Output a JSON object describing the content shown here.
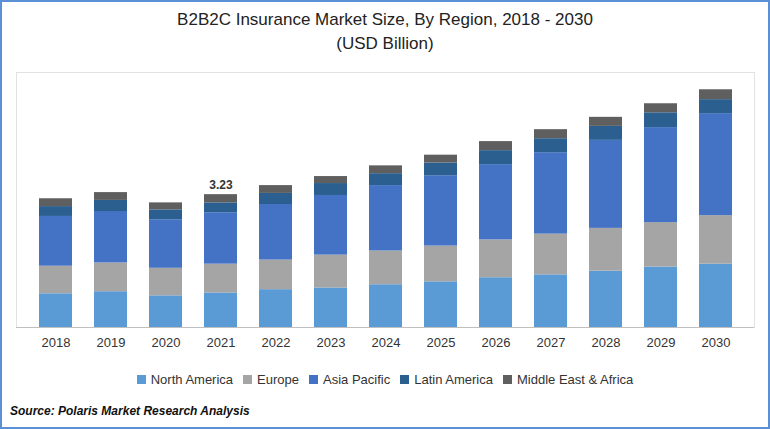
{
  "chart_data": {
    "type": "bar",
    "stacked": true,
    "title": "B2B2C Insurance Market Size, By Region, 2018 - 2030",
    "subtitle": "(USD Billion)",
    "source": "Source: Polaris Market Research Analysis",
    "categories": [
      "2018",
      "2019",
      "2020",
      "2021",
      "2022",
      "2023",
      "2024",
      "2025",
      "2026",
      "2027",
      "2028",
      "2029",
      "2030"
    ],
    "series": [
      {
        "name": "North America",
        "color": "#5b9bd5",
        "values": [
          0.82,
          0.87,
          0.77,
          0.84,
          0.92,
          0.96,
          1.04,
          1.11,
          1.21,
          1.28,
          1.37,
          1.47,
          1.54
        ]
      },
      {
        "name": "Europe",
        "color": "#a5a5a5",
        "values": [
          0.67,
          0.7,
          0.67,
          0.7,
          0.72,
          0.8,
          0.82,
          0.87,
          0.92,
          0.99,
          1.04,
          1.08,
          1.18
        ]
      },
      {
        "name": "Asia Pacific",
        "color": "#4472c4",
        "values": [
          1.21,
          1.25,
          1.18,
          1.25,
          1.35,
          1.45,
          1.59,
          1.71,
          1.83,
          1.98,
          2.14,
          2.31,
          2.48
        ]
      },
      {
        "name": "Latin America",
        "color": "#2a5f8f",
        "values": [
          0.24,
          0.27,
          0.24,
          0.24,
          0.27,
          0.29,
          0.29,
          0.31,
          0.34,
          0.34,
          0.34,
          0.36,
          0.34
        ]
      },
      {
        "name": "Middle East & Africa",
        "color": "#5f5f5f",
        "values": [
          0.19,
          0.19,
          0.17,
          0.2,
          0.19,
          0.17,
          0.19,
          0.19,
          0.22,
          0.22,
          0.22,
          0.22,
          0.24
        ]
      }
    ],
    "annotations": [
      {
        "text": "3.23",
        "x": "2021",
        "y": 3.23
      }
    ],
    "ylim": [
      0,
      6.2
    ],
    "tick_labels": "x",
    "grid": false,
    "legend": "bottom"
  }
}
